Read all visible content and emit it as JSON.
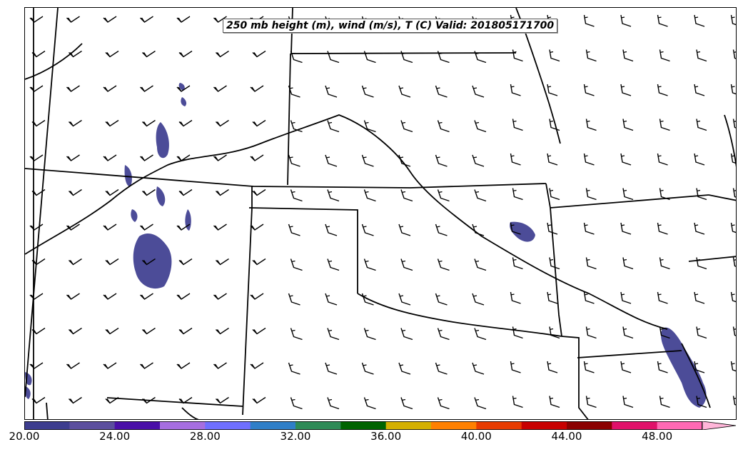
{
  "title": "250 mb height (m), wind (m/s), T (C) Valid: 201805171700",
  "colorbar": {
    "colors": [
      "#3d3d8f",
      "#5b4e9e",
      "#4a0fa8",
      "#a66ee0",
      "#6f6fff",
      "#2f7fc8",
      "#2e8b57",
      "#006400",
      "#d4b000",
      "#ff8000",
      "#e83b00",
      "#c80000",
      "#8b0000",
      "#e0106a",
      "#ff69b4"
    ],
    "extend_color": "#ffb6d9",
    "tick_labels": [
      "20.00",
      "24.00",
      "28.00",
      "32.00",
      "36.00",
      "40.00",
      "44.00",
      "48.00"
    ]
  },
  "shading_color": "#3d3d8f",
  "legend_note": ""
}
